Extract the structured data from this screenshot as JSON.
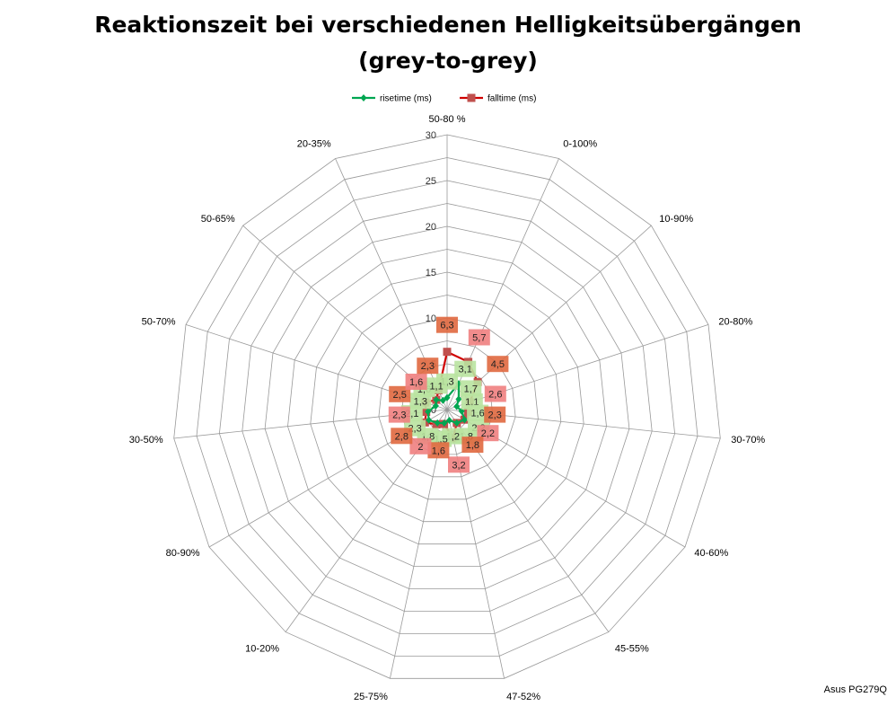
{
  "title_line1": "Reaktionszeit bei verschiedenen Helligkeitsübergängen",
  "title_line2": "(grey-to-grey)",
  "watermark": "Asus PG279Q",
  "colors": {
    "rise_line": "#00a651",
    "rise_label_bg": "#b9e3a0",
    "fall_line": "#d00000",
    "fall_marker": "#c0504d",
    "fall_label_bg_light": "#f08080",
    "fall_label_bg_dark": "#e0683f",
    "grid": "#999999"
  },
  "chart_data": {
    "type": "radar",
    "categories": [
      "50-80 %",
      "0-100%",
      "10-90%",
      "20-80%",
      "30-70%",
      "40-60%",
      "45-55%",
      "47-52%",
      "25-75%",
      "10-20%",
      "80-90%",
      "30-50%",
      "50-70%",
      "50-65%",
      "20-35%"
    ],
    "rlim": [
      0,
      30
    ],
    "rticks": [
      0,
      5,
      10,
      15,
      20,
      25,
      30
    ],
    "minor_ring_step": 2.5,
    "grid": true,
    "legend_position": "top",
    "series": [
      {
        "name": "risetime (ms)",
        "values": [
          1.3,
          3.1,
          1.7,
          1.1,
          1.6,
          2.2,
          1.8,
          1.2,
          1.5,
          1.8,
          2.3,
          2.1,
          1.3,
          1.6,
          1.1
        ]
      },
      {
        "name": "falltime (ms)",
        "values": [
          6.3,
          5.7,
          4.5,
          2.6,
          2.3,
          2.2,
          1.8,
          3.2,
          1.6,
          2.0,
          2.8,
          2.3,
          2.5,
          1.6,
          2.3
        ]
      }
    ],
    "data_labels": [
      [
        "1,3",
        "3,1",
        "1,7",
        "1,1",
        "1,6",
        "2,2",
        "1,8",
        "1,2",
        "1,5",
        "1,8",
        "2,3",
        "2,1",
        "1,3",
        "1,6",
        "1,1"
      ],
      [
        "6,3",
        "5,7",
        "4,5",
        "2,6",
        "2,3",
        "2,2",
        "1,8",
        "3,2",
        "1,6",
        "2",
        "2,8",
        "2,3",
        "2,5",
        "1,6",
        "2,3"
      ]
    ]
  }
}
